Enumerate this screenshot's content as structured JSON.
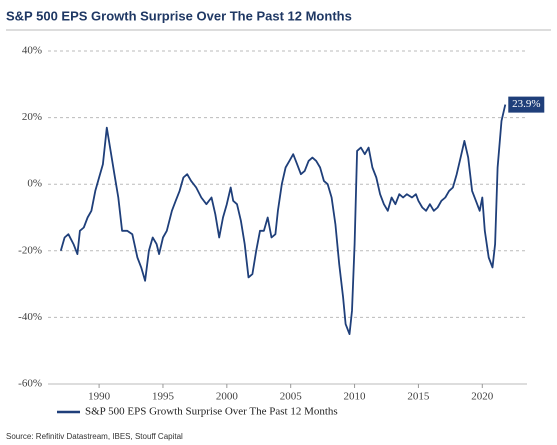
{
  "chart_data": {
    "type": "line",
    "title": "S&P 500 EPS Growth Surprise Over The Past 12 Months",
    "source": "Source: Refinitiv Datastream, IBES, Stouff Capital",
    "x": [
      1987.0,
      1987.3,
      1987.6,
      1988.0,
      1988.3,
      1988.5,
      1988.8,
      1989.1,
      1989.4,
      1989.7,
      1990.0,
      1990.3,
      1990.6,
      1990.9,
      1991.2,
      1991.5,
      1991.8,
      1992.2,
      1992.6,
      1993.0,
      1993.3,
      1993.6,
      1993.9,
      1994.2,
      1994.5,
      1994.7,
      1995.0,
      1995.3,
      1995.7,
      1996.0,
      1996.3,
      1996.6,
      1996.9,
      1997.2,
      1997.6,
      1998.0,
      1998.4,
      1998.8,
      1999.1,
      1999.4,
      1999.7,
      2000.0,
      2000.3,
      2000.5,
      2000.8,
      2001.1,
      2001.4,
      2001.7,
      2002.0,
      2002.3,
      2002.6,
      2002.9,
      2003.2,
      2003.5,
      2003.8,
      2004.0,
      2004.3,
      2004.6,
      2004.9,
      2005.2,
      2005.5,
      2005.8,
      2006.1,
      2006.4,
      2006.7,
      2007.0,
      2007.3,
      2007.6,
      2007.9,
      2008.2,
      2008.5,
      2008.8,
      2009.1,
      2009.3,
      2009.6,
      2009.8,
      2010.0,
      2010.2,
      2010.5,
      2010.8,
      2011.1,
      2011.4,
      2011.7,
      2012.0,
      2012.3,
      2012.6,
      2012.9,
      2013.2,
      2013.5,
      2013.8,
      2014.1,
      2014.5,
      2014.8,
      2015.0,
      2015.3,
      2015.6,
      2015.9,
      2016.2,
      2016.5,
      2016.8,
      2017.1,
      2017.4,
      2017.7,
      2018.0,
      2018.3,
      2018.6,
      2018.9,
      2019.2,
      2019.5,
      2019.8,
      2020.0,
      2020.2,
      2020.5,
      2020.8,
      2021.0,
      2021.2,
      2021.5,
      2021.8
    ],
    "series": [
      {
        "name": "S&P 500 EPS Growth Surprise Over The Past 12 Months",
        "color": "#1f3f7a",
        "values": [
          -20,
          -16,
          -15,
          -18,
          -21,
          -14,
          -13,
          -10,
          -8,
          -2,
          2,
          6,
          17,
          10,
          3,
          -4,
          -14,
          -14,
          -15,
          -22,
          -25,
          -29,
          -20,
          -16,
          -18,
          -21,
          -16,
          -14,
          -8,
          -5,
          -2,
          2,
          3,
          1,
          -1,
          -4,
          -6,
          -4,
          -9,
          -16,
          -10,
          -6,
          -1,
          -5,
          -6,
          -11,
          -18,
          -28,
          -27,
          -20,
          -14,
          -14,
          -10,
          -16,
          -15,
          -8,
          0,
          5,
          7,
          9,
          6,
          3,
          4,
          7,
          8,
          7,
          5,
          1,
          0,
          -4,
          -12,
          -24,
          -34,
          -42,
          -45,
          -38,
          -18,
          10,
          11,
          9,
          11,
          5,
          2,
          -3,
          -6,
          -8,
          -4,
          -6,
          -3,
          -4,
          -3,
          -4,
          -3,
          -5,
          -7,
          -8,
          -6,
          -8,
          -7,
          -5,
          -4,
          -2,
          -1,
          3,
          8,
          13,
          8,
          -2,
          -5,
          -8,
          -4,
          -14,
          -22,
          -25,
          -18,
          5,
          19,
          23.9
        ]
      }
    ],
    "annotations": [
      {
        "x": 2021.8,
        "y": 23.9,
        "text": "23.9%"
      }
    ],
    "xlim": [
      1986,
      2023.5
    ],
    "xticks": [
      1990,
      1995,
      2000,
      2005,
      2010,
      2015,
      2020
    ],
    "ylim": [
      -60,
      40
    ],
    "yticks": [
      {
        "value": -60,
        "label": "-60%"
      },
      {
        "value": -40,
        "label": "-40%"
      },
      {
        "value": -20,
        "label": "-20%"
      },
      {
        "value": 0,
        "label": "0%"
      },
      {
        "value": 20,
        "label": "20%"
      },
      {
        "value": 40,
        "label": "40%"
      }
    ],
    "grid": true,
    "legend": "bottom-left"
  }
}
